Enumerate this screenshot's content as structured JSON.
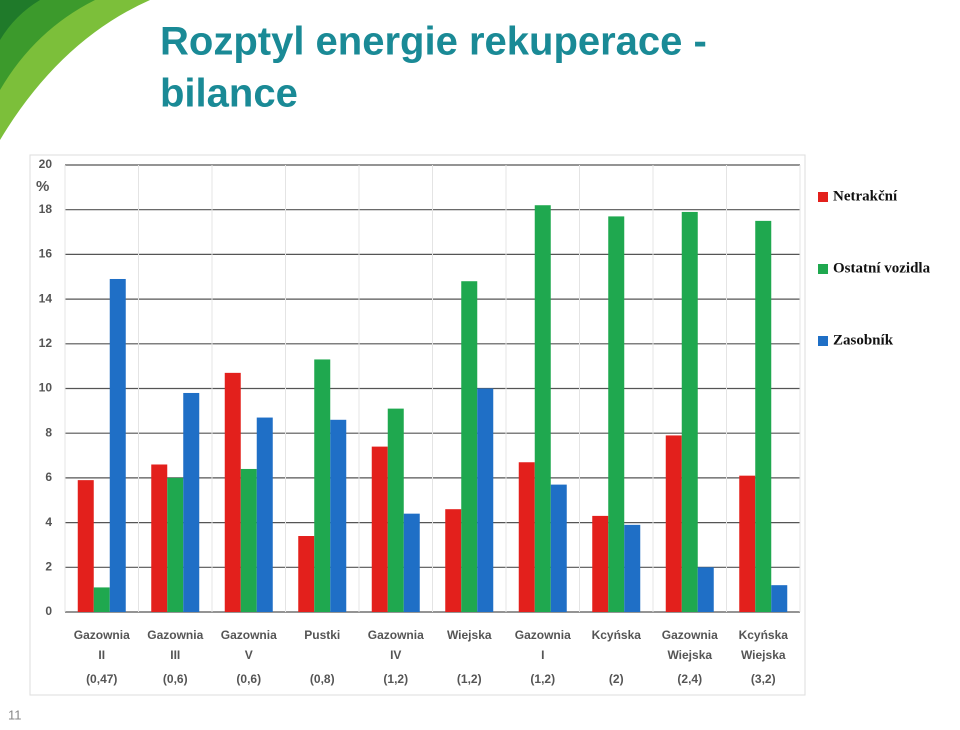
{
  "title_lines": [
    "Rozptyl energie rekuperace -",
    "bilance"
  ],
  "slide_number": "11",
  "chart_data": {
    "type": "bar",
    "y_unit": "%",
    "categories": [
      [
        "Gazownia",
        "II",
        "(0,47)"
      ],
      [
        "Gazownia",
        "III",
        "(0,6)"
      ],
      [
        "Gazownia",
        "V",
        "(0,6)"
      ],
      [
        "Pustki",
        "(0,8)"
      ],
      [
        "Gazownia",
        "IV",
        "(1,2)"
      ],
      [
        "Wiejska",
        "(1,2)"
      ],
      [
        "Gazownia",
        "I",
        "(1,2)"
      ],
      [
        "Kcyńska",
        "(2)"
      ],
      [
        "Gazownia",
        "Wiejska",
        "(2,4)"
      ],
      [
        "Kcyńska",
        "Wiejska",
        "(3,2)"
      ]
    ],
    "series": [
      {
        "name": "Netrakční",
        "color": "#e3201c",
        "values": [
          5.9,
          6.6,
          10.7,
          3.4,
          7.4,
          4.6,
          6.7,
          4.3,
          7.9,
          6.1
        ]
      },
      {
        "name": "Ostatní vozidla",
        "color": "#1fa84f",
        "values": [
          1.1,
          6.0,
          6.4,
          11.3,
          9.1,
          14.8,
          18.2,
          17.7,
          17.9,
          17.5
        ]
      },
      {
        "name": "Zasobník",
        "color": "#1f6fc6",
        "values": [
          14.9,
          9.8,
          8.7,
          8.6,
          4.4,
          10.0,
          5.7,
          3.9,
          2.0,
          1.2
        ]
      }
    ],
    "ylim": [
      0,
      20
    ],
    "yticks": [
      0,
      2,
      4,
      6,
      8,
      10,
      12,
      14,
      16,
      18,
      20
    ],
    "grid": true,
    "legend": "right"
  }
}
